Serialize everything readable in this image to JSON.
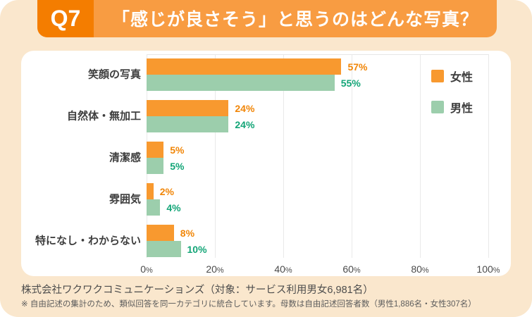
{
  "header": {
    "question_number": "Q7",
    "title": "「感じが良さそう」と思うのはどんな写真？"
  },
  "legend": {
    "female": "女性",
    "male": "男性"
  },
  "chart_data": {
    "type": "bar",
    "orientation": "horizontal",
    "title": "「感じが良さそう」と思うのはどんな写真？",
    "categories": [
      "笑顔の写真",
      "自然体・無加工",
      "清潔感",
      "雰囲気",
      "特になし・わからない"
    ],
    "series": [
      {
        "name": "女性",
        "color": "#F8992F",
        "label_color": "#F18608",
        "values": [
          57,
          24,
          5,
          2,
          8
        ]
      },
      {
        "name": "男性",
        "color": "#9CCEAC",
        "label_color": "#13A577",
        "values": [
          55,
          24,
          5,
          4,
          10
        ]
      }
    ],
    "value_suffix": "%",
    "x_ticks": [
      "0%",
      "20%",
      "40%",
      "60%",
      "80%",
      "100%"
    ],
    "xlim": [
      0,
      100
    ],
    "grid": "vertical",
    "legend_position": "top-right"
  },
  "footer": {
    "source": "株式会社ワクワクコミュニケーションズ（対象：サービス利用男女6,981名）",
    "note": "※ 自由記述の集計のため、類似回答を同一カテゴリに統合しています。母数は自由記述回答者数（男性1,886名・女性307名）"
  },
  "colors": {
    "background": "#FAE7CD",
    "banner": "#F89C42",
    "question_box": "#F47D00",
    "card": "#FFFFFF",
    "gridline": "#E9E9E9",
    "category_text": "#3D3D3D",
    "axis_text": "#4B4B4B"
  }
}
